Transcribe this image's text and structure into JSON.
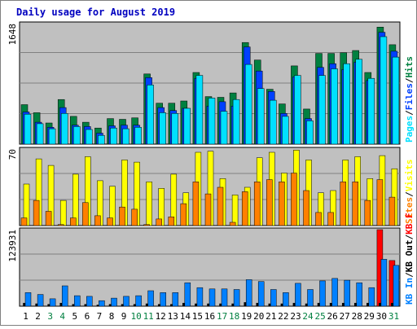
{
  "chart_data": {
    "title": "Daily usage for August 2019",
    "days": [
      "1",
      "2",
      "3",
      "4",
      "5",
      "6",
      "7",
      "8",
      "9",
      "10",
      "11",
      "12",
      "13",
      "14",
      "15",
      "16",
      "17",
      "18",
      "19",
      "20",
      "21",
      "22",
      "23",
      "24",
      "25",
      "26",
      "27",
      "28",
      "29",
      "30",
      "31"
    ],
    "weekend_days": [
      "3",
      "4",
      "10",
      "11",
      "17",
      "18",
      "24",
      "25",
      "31"
    ],
    "colors": {
      "background": "#C0C0C0",
      "hits": "#008040",
      "files": "#0040FF",
      "pages": "#00E0FF",
      "visits": "#FFFF00",
      "sites": "#FF8000",
      "kb_in": "#0080FF",
      "kb_out": "#000000",
      "kb_f": "#FF0000",
      "title": "#0000C0",
      "weekend_label": "#008040"
    },
    "panels": [
      {
        "type": "bar",
        "max_label": "1648",
        "ymax": 1648,
        "legend": [
          "Hits",
          "/",
          "Files",
          "/",
          "Pages"
        ],
        "series": [
          {
            "name": "Hits",
            "values": [
              540,
              430,
              290,
              610,
              380,
              300,
              220,
              350,
              340,
              360,
              960,
              560,
              560,
              590,
              980,
              650,
              640,
              700,
              1390,
              1150,
              750,
              550,
              1070,
              480,
              1240,
              1240,
              1250,
              1280,
              980,
              1600,
              1360
            ]
          },
          {
            "name": "Files",
            "values": [
              440,
              300,
              230,
              500,
              260,
              240,
              150,
              250,
              260,
              260,
              910,
              500,
              460,
              490,
              900,
              520,
              580,
              520,
              1330,
              1000,
              720,
              420,
              920,
              350,
              1050,
              1100,
              1020,
              1120,
              870,
              1530,
              1270
            ]
          },
          {
            "name": "Pages",
            "values": [
              410,
              280,
              210,
              420,
              240,
              200,
              120,
              220,
              210,
              230,
              810,
              430,
              420,
              490,
              940,
              630,
              450,
              610,
              1090,
              760,
              600,
              380,
              940,
              320,
              940,
              1030,
              1100,
              1160,
              900,
              1470,
              1190
            ]
          }
        ]
      },
      {
        "type": "bar",
        "max_label": "70",
        "ymax": 70,
        "legend": [
          "Visits",
          "/",
          "Sites"
        ],
        "series": [
          {
            "name": "Visits",
            "values": [
              38,
              61,
              55,
              23,
              47,
              63,
              41,
              36,
              60,
              58,
              40,
              34,
              47,
              30,
              67,
              68,
              43,
              28,
              35,
              62,
              67,
              48,
              69,
              60,
              30,
              32,
              60,
              63,
              43,
              64,
              52
            ]
          },
          {
            "name": "Sites",
            "values": [
              7,
              23,
              13,
              1,
              7,
              21,
              9,
              7,
              17,
              15,
              1,
              6,
              8,
              20,
              40,
              29,
              35,
              3,
              31,
              40,
              42,
              40,
              48,
              32,
              12,
              12,
              40,
              40,
              23,
              42,
              26
            ]
          }
        ]
      },
      {
        "type": "bar",
        "max_label": "123931",
        "ymax": 123931,
        "legend": [
          "KB F",
          "/",
          "KB Out",
          "/",
          "KB In"
        ],
        "series": [
          {
            "name": "KB F",
            "values": [
              0,
              0,
              0,
              0,
              0,
              0,
              0,
              0,
              0,
              0,
              0,
              0,
              0,
              0,
              0,
              0,
              0,
              0,
              0,
              0,
              0,
              0,
              0,
              0,
              0,
              0,
              0,
              0,
              0,
              123931,
              74000
            ]
          },
          {
            "name": "KB Out",
            "values": [
              5000,
              4000,
              3000,
              5000,
              3000,
              3000,
              2000,
              3000,
              3000,
              3000,
              4000,
              3000,
              3000,
              5000,
              4000,
              4000,
              4000,
              4000,
              6000,
              5000,
              4000,
              4000,
              5000,
              4000,
              5000,
              5000,
              5000,
              5000,
              5000,
              5000,
              5000
            ]
          },
          {
            "name": "KB In",
            "values": [
              22000,
              19000,
              12000,
              33000,
              17000,
              16000,
              9000,
              13000,
              16000,
              17000,
              25000,
              22000,
              22000,
              38000,
              30000,
              28000,
              28000,
              27000,
              43000,
              40000,
              27000,
              22000,
              37000,
              27000,
              41000,
              45000,
              42000,
              38000,
              30000,
              76000,
              66000
            ]
          }
        ]
      }
    ]
  }
}
